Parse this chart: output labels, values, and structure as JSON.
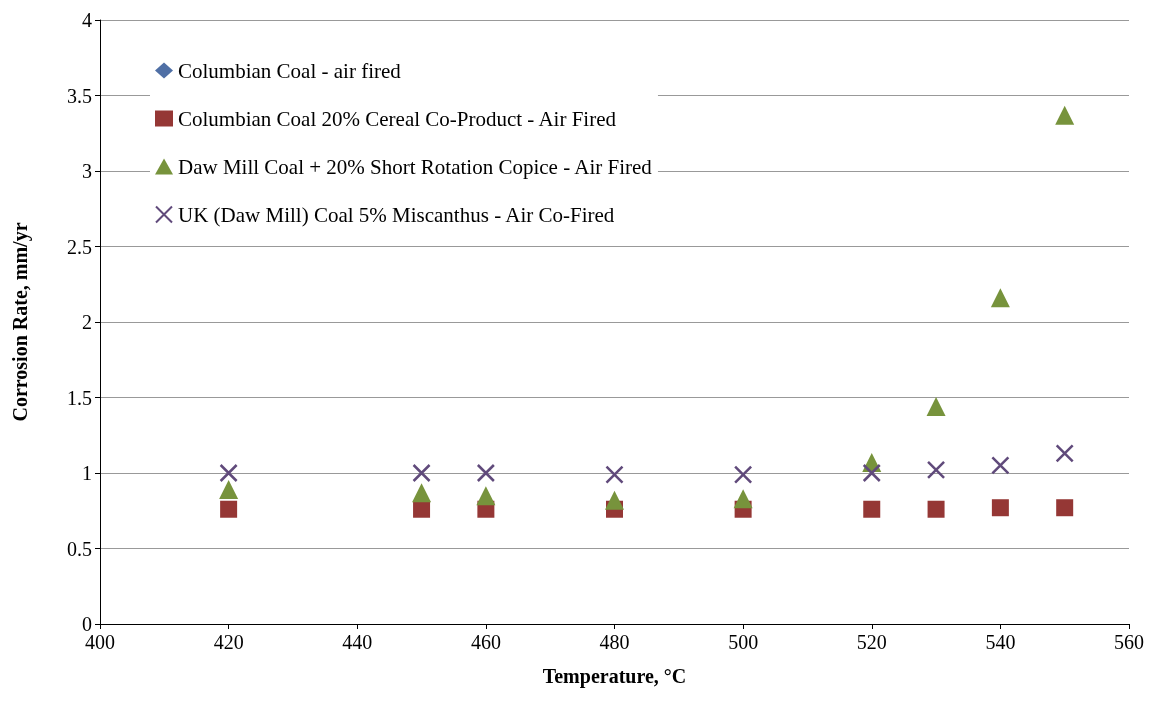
{
  "chart_data": {
    "type": "scatter",
    "xlabel": "Temperature, °C",
    "ylabel": "Corrosion Rate, mm/yr",
    "x": [
      420,
      450,
      460,
      480,
      500,
      520,
      530,
      540,
      550
    ],
    "series": [
      {
        "name": "Columbian Coal - air fired",
        "color": "#4f6fa5",
        "marker": "diamond",
        "values": [
          null,
          null,
          null,
          null,
          null,
          null,
          null,
          null,
          null
        ]
      },
      {
        "name": "Columbian Coal 20% Cereal Co-Product - Air Fired",
        "color": "#953735",
        "marker": "square",
        "values": [
          0.76,
          0.76,
          0.76,
          0.76,
          0.76,
          0.76,
          0.76,
          0.77,
          0.77
        ]
      },
      {
        "name": "Daw Mill Coal + 20% Short Rotation Copice - Air Fired",
        "color": "#77933c",
        "marker": "triangle",
        "values": [
          0.89,
          0.87,
          0.85,
          0.82,
          0.83,
          1.07,
          1.44,
          2.16,
          3.37
        ]
      },
      {
        "name": "UK (Daw Mill) Coal 5% Miscanthus - Air Co-Fired",
        "color": "#604a7b",
        "marker": "cross",
        "values": [
          1.0,
          1.0,
          1.0,
          0.99,
          0.99,
          1.0,
          1.02,
          1.05,
          1.13
        ]
      }
    ],
    "xlim": [
      400,
      560
    ],
    "xticks": [
      400,
      420,
      440,
      460,
      480,
      500,
      520,
      540,
      560
    ],
    "ylim": [
      0,
      4
    ],
    "yticks": [
      0,
      0.5,
      1,
      1.5,
      2,
      2.5,
      3,
      3.5,
      4
    ],
    "grid": "y",
    "legend": "top left"
  }
}
